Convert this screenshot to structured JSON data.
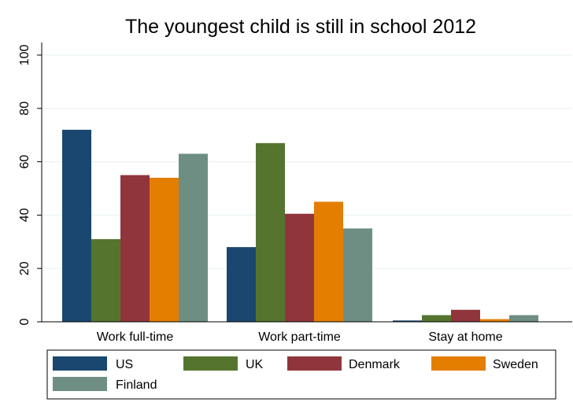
{
  "chart_data": {
    "type": "bar",
    "title": "The youngest child is still in school 2012",
    "xlabel": "",
    "ylabel": "",
    "ylim": [
      0,
      100
    ],
    "yticks": [
      "0",
      "20",
      "40",
      "60",
      "80",
      "100"
    ],
    "grid": true,
    "legend_position": "bottom",
    "categories": [
      "Work full-time",
      "Work part-time",
      "Stay at home"
    ],
    "series": [
      {
        "name": "US",
        "color": "#1a476f",
        "values": [
          72,
          28,
          0.5
        ]
      },
      {
        "name": "UK",
        "color": "#55752f",
        "values": [
          31,
          67,
          2.5
        ]
      },
      {
        "name": "Denmark",
        "color": "#90353b",
        "values": [
          55,
          40.5,
          4.5
        ]
      },
      {
        "name": "Sweden",
        "color": "#e37e00",
        "values": [
          54,
          45,
          1
        ]
      },
      {
        "name": "Finland",
        "color": "#6e8e84",
        "values": [
          63,
          35,
          2.5
        ]
      }
    ]
  }
}
